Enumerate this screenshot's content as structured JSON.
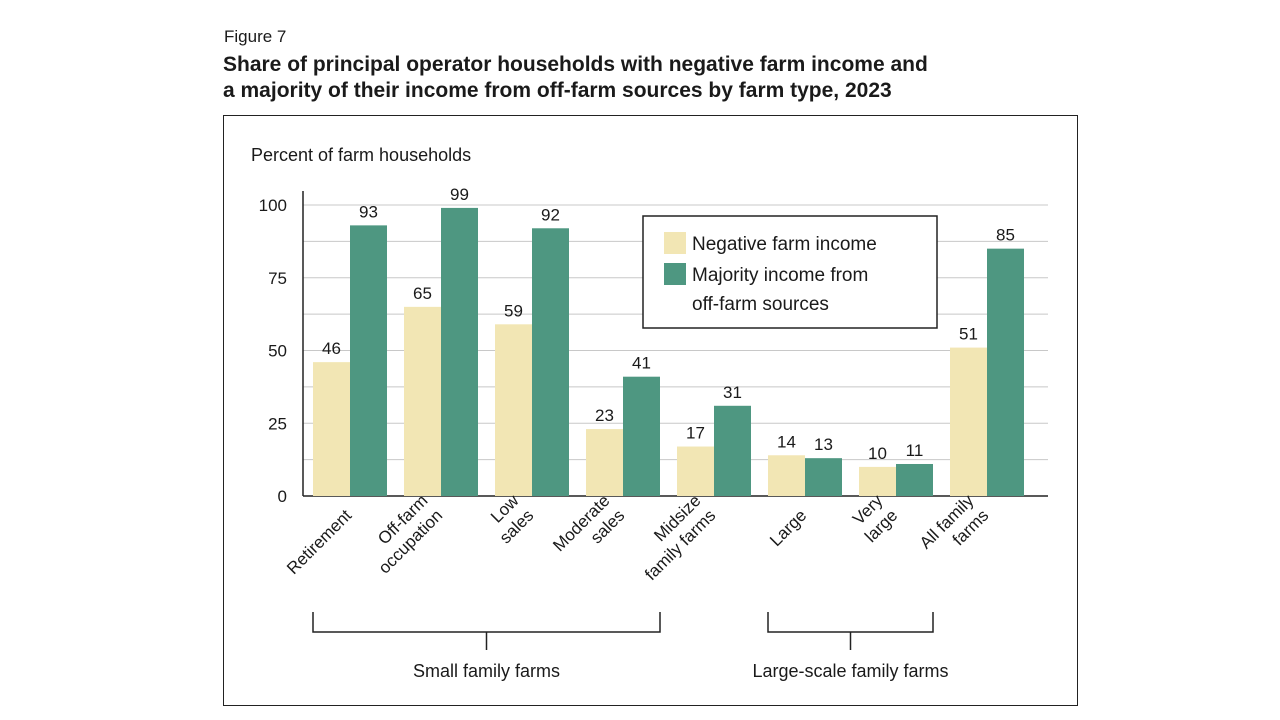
{
  "figure": {
    "number": "Figure 7",
    "title_line1": "Share of principal operator households with negative farm income and",
    "title_line2": "a majority of their income from off-farm sources by farm type, 2023"
  },
  "colors": {
    "negative": "#f2e6b4",
    "majority": "#4e9781",
    "grid": "#c8c8c8"
  },
  "chart_data": {
    "type": "bar",
    "title": "Share of principal operator households with negative farm income and a majority of their income from off-farm sources by farm type, 2023",
    "ylabel": "Percent of farm households",
    "xlabel": "",
    "ylim": [
      0,
      100
    ],
    "yticks": [
      0,
      25,
      50,
      75,
      100
    ],
    "grid": true,
    "legend_position": "top-right",
    "categories": [
      [
        "Retirement"
      ],
      [
        "Off-farm",
        "occupation"
      ],
      [
        "Low",
        "sales"
      ],
      [
        "Moderate",
        "sales"
      ],
      [
        "Midsize",
        "family farms"
      ],
      [
        "Large"
      ],
      [
        "Very",
        "large"
      ],
      [
        "All family",
        "farms"
      ]
    ],
    "series": [
      {
        "name": "Negative farm income",
        "legend_lines": [
          "Negative farm income"
        ],
        "color": "#f2e6b4",
        "values": [
          46,
          65,
          59,
          23,
          17,
          14,
          10,
          51
        ]
      },
      {
        "name": "Majority income from off-farm sources",
        "legend_lines": [
          "Majority income from",
          "off-farm sources"
        ],
        "color": "#4e9781",
        "values": [
          93,
          99,
          92,
          41,
          31,
          13,
          11,
          85
        ]
      }
    ],
    "groups": [
      {
        "label": "Small family farms",
        "from": 0,
        "to": 3
      },
      {
        "label": "Large-scale family farms",
        "from": 5,
        "to": 6
      }
    ]
  }
}
